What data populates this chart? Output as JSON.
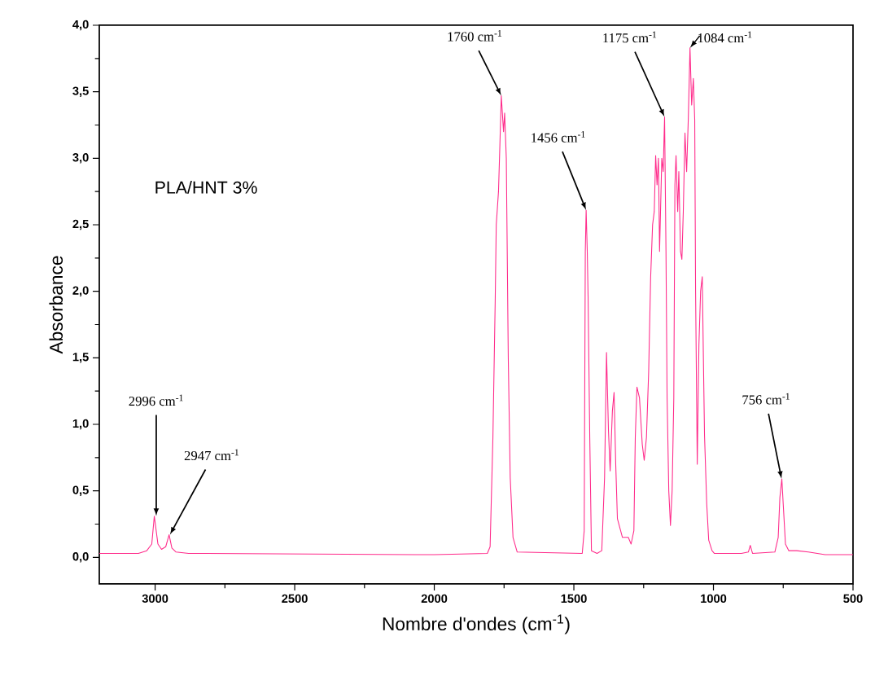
{
  "chart_data": {
    "type": "line",
    "xlabel": "Nombre d'ondes (cm$^{-1}$)",
    "ylabel": "Absorbance",
    "xlim": [
      3200,
      500
    ],
    "ylim": [
      -0.2,
      4.0
    ],
    "xticks": [
      3000,
      2500,
      2000,
      1500,
      1000,
      500
    ],
    "yticks": [
      {
        "value": 0,
        "label": "0,0"
      },
      {
        "value": 0.5,
        "label": "0,5"
      },
      {
        "value": 1,
        "label": "1,0"
      },
      {
        "value": 1.5,
        "label": "1,5"
      },
      {
        "value": 2,
        "label": "2,0"
      },
      {
        "value": 2.5,
        "label": "2,5"
      },
      {
        "value": 3,
        "label": "3,0"
      },
      {
        "value": 3.5,
        "label": "3,5"
      },
      {
        "value": 4,
        "label": "4,0"
      }
    ],
    "grid": false,
    "marker": "none",
    "line_style": "solid",
    "annotations": [
      "PLA/HNT 3%",
      {
        "text": "2996 cm$^{-1}$",
        "x": 2996,
        "y": 0.31
      },
      {
        "text": "2947 cm$^{-1}$",
        "x": 2947,
        "y": 0.17
      },
      {
        "text": "1760 cm$^{-1}$",
        "x": 1760,
        "y": 3.47
      },
      {
        "text": "1456 cm$^{-1}$",
        "x": 1456,
        "y": 2.61
      },
      {
        "text": "1175 cm$^{-1}$",
        "x": 1175,
        "y": 3.31
      },
      {
        "text": "1084 cm$^{-1}$",
        "x": 1084,
        "y": 3.83
      },
      {
        "text": "756 cm$^{-1}$",
        "x": 756,
        "y": 0.59
      }
    ],
    "series": [
      {
        "color": "#ff2a8a",
        "x": [
          3200,
          3060,
          3030,
          3012,
          3003,
          2990,
          2977,
          2962,
          2950,
          2940,
          2925,
          2880,
          2000,
          1810,
          1800,
          1790,
          1782,
          1778,
          1770,
          1765,
          1760,
          1752,
          1748,
          1742,
          1735,
          1728,
          1718,
          1703,
          1470,
          1463,
          1459,
          1456,
          1452,
          1449,
          1443,
          1437,
          1417,
          1400,
          1390,
          1383,
          1376,
          1370,
          1362,
          1356,
          1350,
          1344,
          1326,
          1305,
          1295,
          1285,
          1280,
          1274,
          1265,
          1255,
          1248,
          1240,
          1232,
          1225,
          1218,
          1212,
          1207,
          1202,
          1197,
          1193,
          1185,
          1180,
          1175,
          1170,
          1166,
          1160,
          1154,
          1148,
          1142,
          1138,
          1134,
          1128,
          1124,
          1118,
          1113,
          1108,
          1102,
          1096,
          1090,
          1084,
          1078,
          1072,
          1067,
          1064,
          1058,
          1052,
          1046,
          1040,
          1036,
          1032,
          1024,
          1017,
          1005,
          997,
          900,
          875,
          868,
          860,
          780,
          768,
          762,
          755,
          750,
          742,
          730,
          702,
          660,
          600,
          500
        ],
        "values": [
          0.03,
          0.03,
          0.05,
          0.1,
          0.31,
          0.1,
          0.06,
          0.08,
          0.17,
          0.07,
          0.04,
          0.03,
          0.02,
          0.03,
          0.08,
          0.9,
          1.9,
          2.5,
          2.75,
          3.1,
          3.47,
          3.2,
          3.34,
          3.0,
          1.5,
          0.6,
          0.15,
          0.04,
          0.03,
          0.2,
          2.3,
          2.61,
          2.3,
          1.96,
          0.9,
          0.05,
          0.03,
          0.05,
          0.6,
          1.54,
          0.95,
          0.65,
          1.1,
          1.24,
          0.7,
          0.29,
          0.15,
          0.15,
          0.1,
          0.2,
          0.9,
          1.28,
          1.2,
          0.85,
          0.73,
          0.9,
          1.4,
          2.1,
          2.5,
          2.6,
          3.02,
          2.8,
          3.0,
          2.3,
          3.0,
          2.9,
          3.31,
          2.3,
          1.2,
          0.5,
          0.24,
          0.5,
          1.2,
          2.8,
          3.02,
          2.6,
          2.9,
          2.3,
          2.24,
          2.6,
          3.19,
          2.9,
          3.3,
          3.83,
          3.4,
          3.6,
          3.29,
          2.01,
          0.7,
          1.6,
          2.0,
          2.11,
          1.5,
          0.92,
          0.4,
          0.13,
          0.05,
          0.03,
          0.03,
          0.04,
          0.09,
          0.03,
          0.04,
          0.15,
          0.45,
          0.59,
          0.4,
          0.1,
          0.05,
          0.05,
          0.04,
          0.02,
          0.02
        ]
      }
    ]
  }
}
